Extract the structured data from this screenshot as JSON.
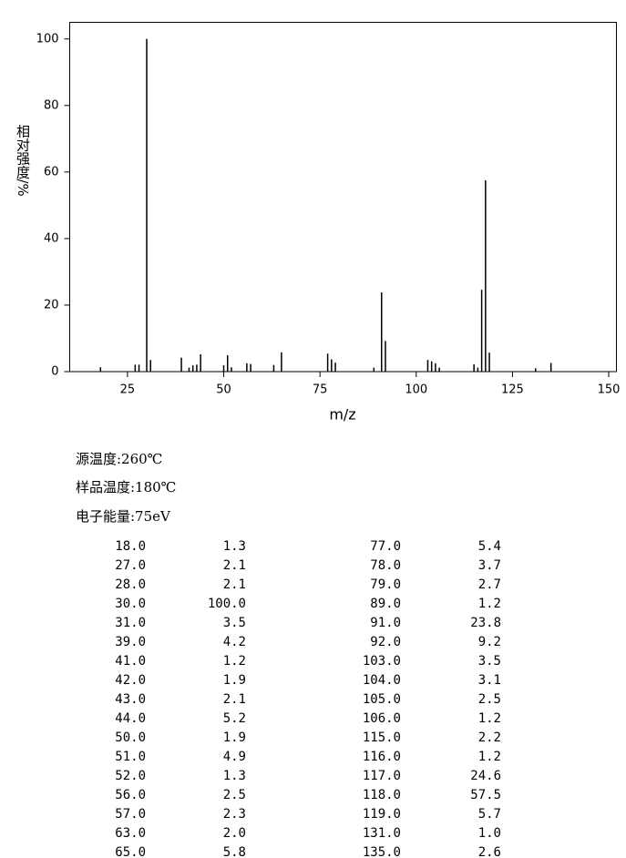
{
  "chart_data": {
    "type": "bar",
    "xlabel": "m/z",
    "ylabel": "相对强度/%",
    "x": [
      18,
      27,
      28,
      30,
      31,
      39,
      41,
      42,
      43,
      44,
      50,
      51,
      52,
      56,
      57,
      63,
      65,
      77,
      78,
      79,
      89,
      91,
      92,
      103,
      104,
      105,
      106,
      115,
      116,
      117,
      118,
      119,
      131,
      135
    ],
    "x_labels": [
      "18.0",
      "27.0",
      "28.0",
      "30.0",
      "31.0",
      "39.0",
      "41.0",
      "42.0",
      "43.0",
      "44.0",
      "50.0",
      "51.0",
      "52.0",
      "56.0",
      "57.0",
      "63.0",
      "65.0",
      "77.0",
      "78.0",
      "79.0",
      "89.0",
      "91.0",
      "92.0",
      "103.0",
      "104.0",
      "105.0",
      "106.0",
      "115.0",
      "116.0",
      "117.0",
      "118.0",
      "119.0",
      "131.0",
      "135.0"
    ],
    "values": [
      1.3,
      2.1,
      2.1,
      100,
      3.5,
      4.2,
      1.2,
      1.9,
      2.1,
      5.2,
      1.9,
      4.9,
      1.3,
      2.5,
      2.3,
      2.0,
      5.8,
      5.4,
      3.7,
      2.7,
      1.2,
      23.8,
      9.2,
      3.5,
      3.1,
      2.5,
      1.2,
      2.2,
      1.2,
      24.6,
      57.5,
      5.7,
      1.0,
      2.6
    ],
    "value_labels": [
      "1.3",
      "2.1",
      "2.1",
      "100.0",
      "3.5",
      "4.2",
      "1.2",
      "1.9",
      "2.1",
      "5.2",
      "1.9",
      "4.9",
      "1.3",
      "2.5",
      "2.3",
      "2.0",
      "5.8",
      "5.4",
      "3.7",
      "2.7",
      "1.2",
      "23.8",
      "9.2",
      "3.5",
      "3.1",
      "2.5",
      "1.2",
      "2.2",
      "1.2",
      "24.6",
      "57.5",
      "5.7",
      "1.0",
      "2.6"
    ],
    "color": "#000000",
    "xlim": [
      10,
      152
    ],
    "xticks": [
      25,
      50,
      75,
      100,
      125,
      150
    ],
    "ylim": [
      0,
      105
    ],
    "yticks": [
      0,
      20,
      40,
      60,
      80,
      100
    ]
  },
  "info": [
    "源温度:260℃",
    "样品温度:180℃",
    "电子能量:75eV"
  ]
}
